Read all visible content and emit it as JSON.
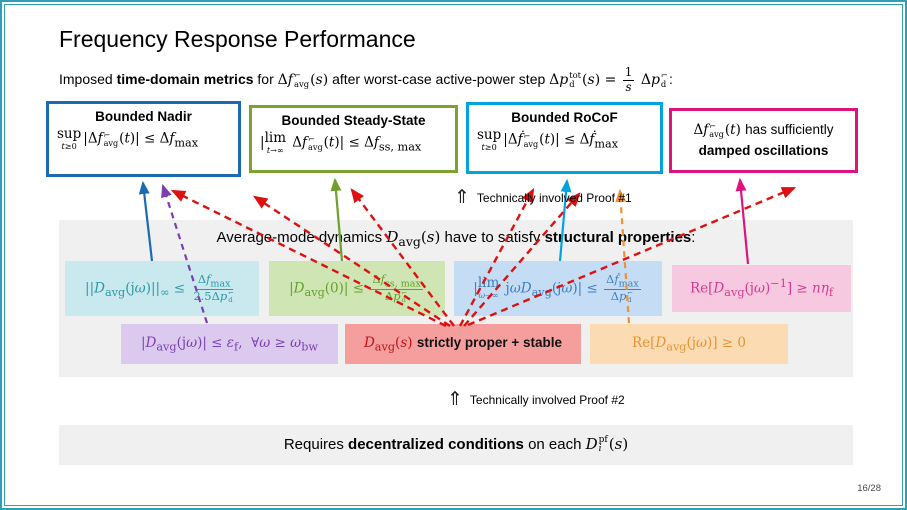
{
  "slide": {
    "title": "Frequency Response Performance",
    "page_number": "16/28",
    "intro_html": "Imposed <b>time-domain metrics</b> for <span class='m'>Δ<i>f</i><span class='ss'><span>⌐</span><span>avg</span></span>(<i>s</i>)</span> after worst-case active-power step <span class='m'>Δ<i>p</i><span class='ss'><span>tot</span><span>d</span></span>(<i>s</i>) = <span class='fr'><span class='nu'>1</span><span class='de'><i>s</i></span></span> Δ<i>p</i><span class='ss'><span>⌐</span><span>d</span></span></span>:"
  },
  "top_boxes": [
    {
      "name": "bounded-nadir",
      "title": "Bounded Nadir",
      "border_color": "#1a6bb2",
      "math_html": "<span class='lim'><span>sup</span><span class='under'><i>t</i>≥0</span></span>|Δ<i>f</i><span class='ss'><span>⌐</span><span>avg</span></span>(<i>t</i>)| ≤ Δ<i>f</i><sub>max</sub>"
    },
    {
      "name": "bounded-steady-state",
      "title": "Bounded Steady-State",
      "border_color": "#7da32f",
      "math_html": "|<span class='lim'><span>lim</span><span class='under'><i>t</i>→∞</span></span> Δ<i>f</i><span class='ss'><span>⌐</span><span>avg</span></span>(<i>t</i>)| ≤ Δ<i>f</i><sub>ss, max</sub>"
    },
    {
      "name": "bounded-rocof",
      "title": "Bounded RoCoF",
      "border_color": "#00a3dd",
      "math_html": "<span class='lim'><span>sup</span><span class='under'><i>t</i>≥0</span></span>|Δ<i>ḟ</i><span class='ss'><span>⌐</span><span>avg</span></span>(<i>t</i>)| ≤ Δ<i>ḟ</i><sub>max</sub>"
    },
    {
      "name": "damped-oscillations",
      "title": "",
      "border_color": "#dd1480",
      "math_html": "Δ<i>f</i><span class='ss'><span>⌐</span><span>avg</span></span>(<i>t</i>) <span class='sans'>has sufficiently</span><br><b class='sans'>damped oscillations</b>"
    }
  ],
  "proofs": [
    {
      "icon": "⇑",
      "label": "Technically involved Proof #1"
    },
    {
      "icon": "⇑",
      "label": "Technically involved Proof #2"
    }
  ],
  "middle": {
    "heading_html": "Average-mode dynamics <span class='m'><i>D</i><sub>avg</sub>(<i>s</i>)</span> have to satisfy <b>structural properties</b>:",
    "row1": [
      {
        "name": "hinf-norm-bound",
        "fg": "#2a98a8",
        "bg": "#c9e9ee",
        "math_html": "||<i>D</i><sub>avg</sub>(j<i>ω</i>)||<sub>∞</sub> ≤ <span class='fr'><span class='nu'>Δ<i>f</i><sub>max</sub></span><span class='de'>2.5Δ<i>p</i><span class='ss'><span>⌐</span><span>d</span></span></span></span>"
      },
      {
        "name": "dc-gain-bound",
        "fg": "#64a02a",
        "bg": "#cfe6b4",
        "math_html": "|<i>D</i><sub>avg</sub>(0)| ≤ <span class='fr'><span class='nu'>Δ<i>f</i><sub>ss, max</sub></span><span class='de'>Δ<i>p</i><span class='ss'><span>⌐</span><span>d</span></span></span></span>"
      },
      {
        "name": "high-frequency-gain-bound",
        "fg": "#3c7fc0",
        "bg": "#c5ddf4",
        "math_html": "|<span class='lim'><span>lim</span><span class='under'><i>ω</i>→∞</span></span> j<i>ωD</i><sub>avg</sub>(j<i>ω</i>)| ≤ <span class='fr'><span class='nu'>Δ<i>ḟ</i><sub>max</sub></span><span class='de'>Δ<i>p</i><span class='ss'><span>⌐</span><span>d</span></span></span></span>"
      },
      {
        "name": "damping-inequality",
        "fg": "#d23b92",
        "bg": "#f6c9e0",
        "math_html": "Re[<i>D</i><sub>avg</sub>(j<i>ω</i>)<sup>−1</sup>] ≥ <i>nη</i><sub>f</sub>"
      }
    ],
    "row2": [
      {
        "name": "bandwidth-rolloff",
        "fg": "#7a3fb0",
        "bg": "#dccaee",
        "math_html": "|<i>D</i><sub>avg</sub>(j<i>ω</i>)| ≤ <i>ε</i><sub>f</sub>,&nbsp;&nbsp;∀<i>ω</i> ≥ <i>ω</i><sub>bw</sub>"
      },
      {
        "name": "strictly-proper-stable",
        "fg": "#c11212",
        "bg": "#f59e9e",
        "math_html": "<span class='dkred'><i>D</i><sub>avg</sub>(<i>s</i>)</span> <b class='sans ink'>strictly proper + stable</b>"
      },
      {
        "name": "positive-realness",
        "fg": "#e89233",
        "bg": "#fbdcb2",
        "math_html": "Re[<i>D</i><sub>avg</sub>(j<i>ω</i>)] ≥ 0"
      }
    ]
  },
  "bottom": {
    "text_html": "Requires <b>decentralized conditions</b> on each <span class='m'><i>D</i><span class='ss'><span>pf</span><span><i>i</i></span></span>(<i>s</i>)</span>"
  },
  "colors": {
    "frame_teal": "#2e9fb4",
    "nadir_blue": "#1a6bb2",
    "steady_green": "#7da32f",
    "rocof_cyan": "#00a3dd",
    "damped_magenta": "#dd1480",
    "panel_gray": "#f0f0f0",
    "red_arrow": "#dd1111",
    "purple_arrow": "#7a3fb0",
    "orange_arrow": "#f09030",
    "green_arrow": "#6fa02e"
  }
}
